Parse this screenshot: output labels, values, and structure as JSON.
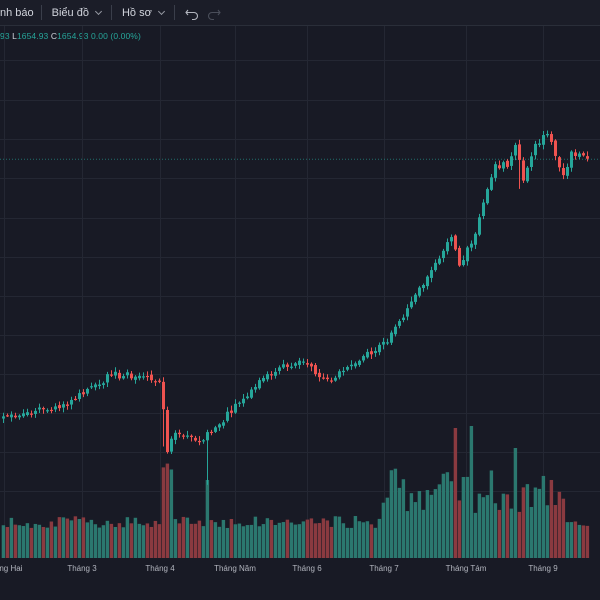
{
  "toolbar": {
    "alerts_label": "nh báo",
    "chart_label": "Biểu đồ",
    "profile_label": "Hồ sơ"
  },
  "legend": {
    "prev_value": "93",
    "low_label": "L",
    "low_value": "1654.93",
    "close_label": "C",
    "close_value": "1654.93",
    "change": "0.00 (0.00%)"
  },
  "colors": {
    "background": "#181a25",
    "up": "#26a69a",
    "down": "#ef5350",
    "up_volume": "#2b786f",
    "down_volume": "#8a3a40",
    "grid": "#242733",
    "price_line": "#26a69a"
  },
  "icons": {
    "undo": "undo-icon",
    "redo": "redo-icon",
    "chevron": "chevron-down-icon"
  },
  "chart_data": {
    "type": "candlestick",
    "xlabels": [
      "Tháng Hai",
      "Tháng 3",
      "Tháng 4",
      "Tháng Năm",
      "Tháng 6",
      "Tháng 7",
      "Tháng Tám",
      "Tháng 9"
    ],
    "last_close": 1654.93,
    "grid": true,
    "volume_pane": true,
    "anchors": [
      {
        "i": 0,
        "p": 1185
      },
      {
        "i": 8,
        "p": 1195
      },
      {
        "i": 14,
        "p": 1200
      },
      {
        "i": 21,
        "p": 1235
      },
      {
        "i": 27,
        "p": 1260
      },
      {
        "i": 35,
        "p": 1258
      },
      {
        "i": 39,
        "p": 1250
      },
      {
        "i": 40,
        "p": 1198
      },
      {
        "i": 41,
        "p": 1120
      },
      {
        "i": 43,
        "p": 1155
      },
      {
        "i": 46,
        "p": 1150
      },
      {
        "i": 49,
        "p": 1140
      },
      {
        "i": 53,
        "p": 1165
      },
      {
        "i": 59,
        "p": 1210
      },
      {
        "i": 65,
        "p": 1255
      },
      {
        "i": 70,
        "p": 1280
      },
      {
        "i": 75,
        "p": 1285
      },
      {
        "i": 78,
        "p": 1262
      },
      {
        "i": 82,
        "p": 1250
      },
      {
        "i": 86,
        "p": 1275
      },
      {
        "i": 90,
        "p": 1295
      },
      {
        "i": 96,
        "p": 1320
      },
      {
        "i": 100,
        "p": 1365
      },
      {
        "i": 104,
        "p": 1420
      },
      {
        "i": 108,
        "p": 1465
      },
      {
        "i": 112,
        "p": 1512
      },
      {
        "i": 114,
        "p": 1460
      },
      {
        "i": 117,
        "p": 1500
      },
      {
        "i": 120,
        "p": 1575
      },
      {
        "i": 123,
        "p": 1645
      },
      {
        "i": 126,
        "p": 1640
      },
      {
        "i": 128,
        "p": 1680
      },
      {
        "i": 130,
        "p": 1615
      },
      {
        "i": 133,
        "p": 1682
      },
      {
        "i": 136,
        "p": 1700
      },
      {
        "i": 138,
        "p": 1660
      },
      {
        "i": 140,
        "p": 1625
      },
      {
        "i": 142,
        "p": 1668
      },
      {
        "i": 146,
        "p": 1654.93
      }
    ]
  }
}
